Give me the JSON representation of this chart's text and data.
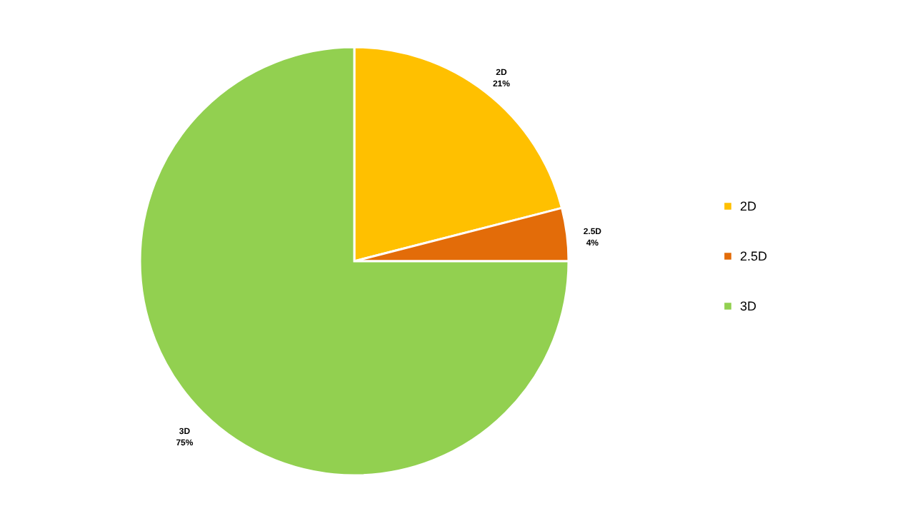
{
  "chart_data": {
    "type": "pie",
    "categories": [
      "2D",
      "2.5D",
      "3D"
    ],
    "values": [
      21,
      4,
      75
    ],
    "colors": [
      "#ffc000",
      "#e36c09",
      "#92d050"
    ],
    "value_labels": [
      "21%",
      "4%",
      "75%"
    ],
    "legend": "right"
  }
}
